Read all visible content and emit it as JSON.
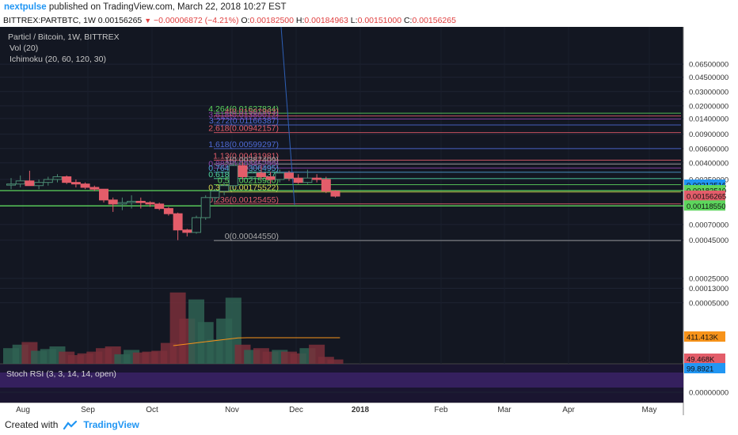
{
  "header": {
    "author": "nextpulse",
    "published_text": "published on TradingView.com, March 22, 2018 10:27 EST",
    "symbol_line": "BITTREX:PARTBTC, 1W",
    "last": "0.00156265",
    "change": "−0.00006872 (−4.21%)",
    "o_label": "O:",
    "o": "0.00182500",
    "h_label": "H:",
    "h": "0.00184963",
    "l_label": "L:",
    "l": "0.00151000",
    "c_label": "C:",
    "c": "0.00156265"
  },
  "legend": {
    "title": "Particl / Bitcoin, 1W, BITTREX",
    "vol": "Vol (20)",
    "ichimoku": "Ichimoku (20, 60, 120, 30)",
    "stoch": "Stoch RSI (3, 3, 14, 14, open)"
  },
  "footer": {
    "made_with": "Created with",
    "brand": "TradingView"
  },
  "colors": {
    "up": "#4a8a72",
    "down": "#e35d6a",
    "bg": "#131722",
    "fib_green": "#5dd65d",
    "accent": "#2196f3"
  },
  "chart_data": {
    "type": "candlestick",
    "y_scale": "log",
    "y_ticks": [
      "0.06500000",
      "0.04500000",
      "0.03000000",
      "0.02000000",
      "0.01400000",
      "0.00900000",
      "0.00600000",
      "0.00400000",
      "0.00250000",
      "0.00070000",
      "0.00045000",
      "0.00025000",
      "0.00013000",
      "0.00005000",
      "0.00000000"
    ],
    "x_ticks": [
      "Aug",
      "Sep",
      "Oct",
      "Nov",
      "Dec",
      "2018",
      "Feb",
      "Mar",
      "Apr",
      "May"
    ],
    "price_badges": [
      {
        "label": "0.00213516",
        "color": "#2196f3"
      },
      {
        "label": "0.00182510",
        "color": "#5dd65d"
      },
      {
        "label": "0.00156265",
        "color": "#e35d6a"
      },
      {
        "label": "0.00118550",
        "color": "#5dd65d"
      }
    ],
    "fib_levels": [
      {
        "label": "4.264(0.01627834)",
        "value": 0.01627834,
        "color": "#5dd65d"
      },
      {
        "label": "4(0.01502963)",
        "value": 0.01502963,
        "color": "#e35d6a"
      },
      {
        "label": "3.618(0.01380012)",
        "value": 0.01380012,
        "color": "#8e44ad"
      },
      {
        "label": "3.272(0.01166387)",
        "value": 0.01166387,
        "color": "#4f6bd8"
      },
      {
        "label": "2.618(0.00942157)",
        "value": 0.00942157,
        "color": "#e35d6a"
      },
      {
        "label": "1.618(0.00599297)",
        "value": 0.00599297,
        "color": "#4f6bd8"
      },
      {
        "label": "1.13(0.00431981)",
        "value": 0.00431981,
        "color": "#e35d6a"
      },
      {
        "label": "1(0.00387409)",
        "value": 0.00387409,
        "color": "#aaaaaa"
      },
      {
        "label": "0.882(0.00345299)",
        "value": 0.00345299,
        "color": "#8e44ad"
      },
      {
        "label": "0.764(0.00306495)",
        "value": 0.00306495,
        "color": "#4fa3d8"
      },
      {
        "label": "0.618(0.00256437)",
        "value": 0.00256437,
        "color": "#4fd8a0"
      },
      {
        "label": "0.5(0.00215980)",
        "value": 0.0021598,
        "color": "#5dd65d"
      },
      {
        "label": "0.382(0.00175522)",
        "value": 0.00175522,
        "color": "#d8d84f"
      },
      {
        "label": "0.236(0.00125455)",
        "value": 0.00125455,
        "color": "#e35d6a"
      },
      {
        "label": "0(0.00044550)",
        "value": 0.0004455,
        "color": "#aaaaaa"
      }
    ],
    "candles": [
      {
        "x": 0,
        "o": 0.00215,
        "h": 0.0026,
        "l": 0.0019,
        "c": 0.0022
      },
      {
        "x": 1,
        "o": 0.0022,
        "h": 0.0028,
        "l": 0.002,
        "c": 0.0024
      },
      {
        "x": 2,
        "o": 0.0024,
        "h": 0.0032,
        "l": 0.0021,
        "c": 0.0021
      },
      {
        "x": 3,
        "o": 0.0021,
        "h": 0.0025,
        "l": 0.0019,
        "c": 0.0023
      },
      {
        "x": 4,
        "o": 0.0023,
        "h": 0.0027,
        "l": 0.0021,
        "c": 0.0025
      },
      {
        "x": 5,
        "o": 0.0025,
        "h": 0.0029,
        "l": 0.0023,
        "c": 0.0027
      },
      {
        "x": 6,
        "o": 0.0027,
        "h": 0.0028,
        "l": 0.0022,
        "c": 0.0023
      },
      {
        "x": 7,
        "o": 0.0023,
        "h": 0.0025,
        "l": 0.002,
        "c": 0.0022
      },
      {
        "x": 8,
        "o": 0.0022,
        "h": 0.0023,
        "l": 0.0019,
        "c": 0.002
      },
      {
        "x": 9,
        "o": 0.002,
        "h": 0.0021,
        "l": 0.0018,
        "c": 0.0019
      },
      {
        "x": 10,
        "o": 0.0019,
        "h": 0.0019,
        "l": 0.0013,
        "c": 0.0014
      },
      {
        "x": 11,
        "o": 0.0014,
        "h": 0.0015,
        "l": 0.001,
        "c": 0.00125
      },
      {
        "x": 12,
        "o": 0.00125,
        "h": 0.0015,
        "l": 0.00105,
        "c": 0.0013
      },
      {
        "x": 13,
        "o": 0.0013,
        "h": 0.0016,
        "l": 0.0011,
        "c": 0.00135
      },
      {
        "x": 14,
        "o": 0.00135,
        "h": 0.0015,
        "l": 0.0011,
        "c": 0.0013
      },
      {
        "x": 15,
        "o": 0.0013,
        "h": 0.00135,
        "l": 0.00115,
        "c": 0.00125
      },
      {
        "x": 16,
        "o": 0.00125,
        "h": 0.0013,
        "l": 0.00105,
        "c": 0.0011
      },
      {
        "x": 17,
        "o": 0.0011,
        "h": 0.00115,
        "l": 0.0009,
        "c": 0.00095
      },
      {
        "x": 18,
        "o": 0.00095,
        "h": 0.00098,
        "l": 0.00045,
        "c": 0.0006
      },
      {
        "x": 19,
        "o": 0.0006,
        "h": 0.00062,
        "l": 0.0005,
        "c": 0.00056
      },
      {
        "x": 20,
        "o": 0.00056,
        "h": 0.0009,
        "l": 0.00054,
        "c": 0.00085
      },
      {
        "x": 21,
        "o": 0.00085,
        "h": 0.0016,
        "l": 0.0008,
        "c": 0.0015
      },
      {
        "x": 22,
        "o": 0.0015,
        "h": 0.0019,
        "l": 0.0013,
        "c": 0.0018
      },
      {
        "x": 23,
        "o": 0.0018,
        "h": 0.0023,
        "l": 0.0016,
        "c": 0.0021
      },
      {
        "x": 24,
        "o": 0.0021,
        "h": 0.004,
        "l": 0.0019,
        "c": 0.0037
      },
      {
        "x": 25,
        "o": 0.0037,
        "h": 0.0041,
        "l": 0.0025,
        "c": 0.0027
      },
      {
        "x": 26,
        "o": 0.0027,
        "h": 0.0033,
        "l": 0.0024,
        "c": 0.003
      },
      {
        "x": 27,
        "o": 0.003,
        "h": 0.0037,
        "l": 0.0025,
        "c": 0.0027
      },
      {
        "x": 28,
        "o": 0.0027,
        "h": 0.0031,
        "l": 0.0022,
        "c": 0.0025
      },
      {
        "x": 29,
        "o": 0.0025,
        "h": 0.0033,
        "l": 0.0023,
        "c": 0.003
      },
      {
        "x": 30,
        "o": 0.003,
        "h": 0.0032,
        "l": 0.0024,
        "c": 0.0026
      },
      {
        "x": 31,
        "o": 0.0026,
        "h": 0.0029,
        "l": 0.0022,
        "c": 0.0023
      },
      {
        "x": 32,
        "o": 0.0023,
        "h": 0.0033,
        "l": 0.0022,
        "c": 0.0026
      },
      {
        "x": 33,
        "o": 0.0026,
        "h": 0.0029,
        "l": 0.0023,
        "c": 0.0025
      },
      {
        "x": 34,
        "o": 0.0025,
        "h": 0.0027,
        "l": 0.0017,
        "c": 0.0018
      },
      {
        "x": 35,
        "o": 0.0018,
        "h": 0.00185,
        "l": 0.0015,
        "c": 0.00156
      }
    ],
    "volume": [
      0.18,
      0.22,
      0.25,
      0.15,
      0.17,
      0.2,
      0.14,
      0.1,
      0.12,
      0.14,
      0.18,
      0.2,
      0.11,
      0.16,
      0.13,
      0.14,
      0.15,
      0.24,
      0.82,
      0.52,
      0.74,
      0.48,
      0.28,
      0.52,
      0.76,
      0.22,
      0.16,
      0.18,
      0.14,
      0.16,
      0.14,
      0.12,
      0.18,
      0.22,
      0.08,
      0.05
    ],
    "volume_badges": [
      {
        "label": "411.413K",
        "color": "#f7931a"
      },
      {
        "label": "49.468K",
        "color": "#e35d6a"
      }
    ],
    "stoch_badge": {
      "label": "99.8921",
      "color": "#2196f3"
    },
    "stoch_ticks": [
      "0.0000"
    ]
  }
}
